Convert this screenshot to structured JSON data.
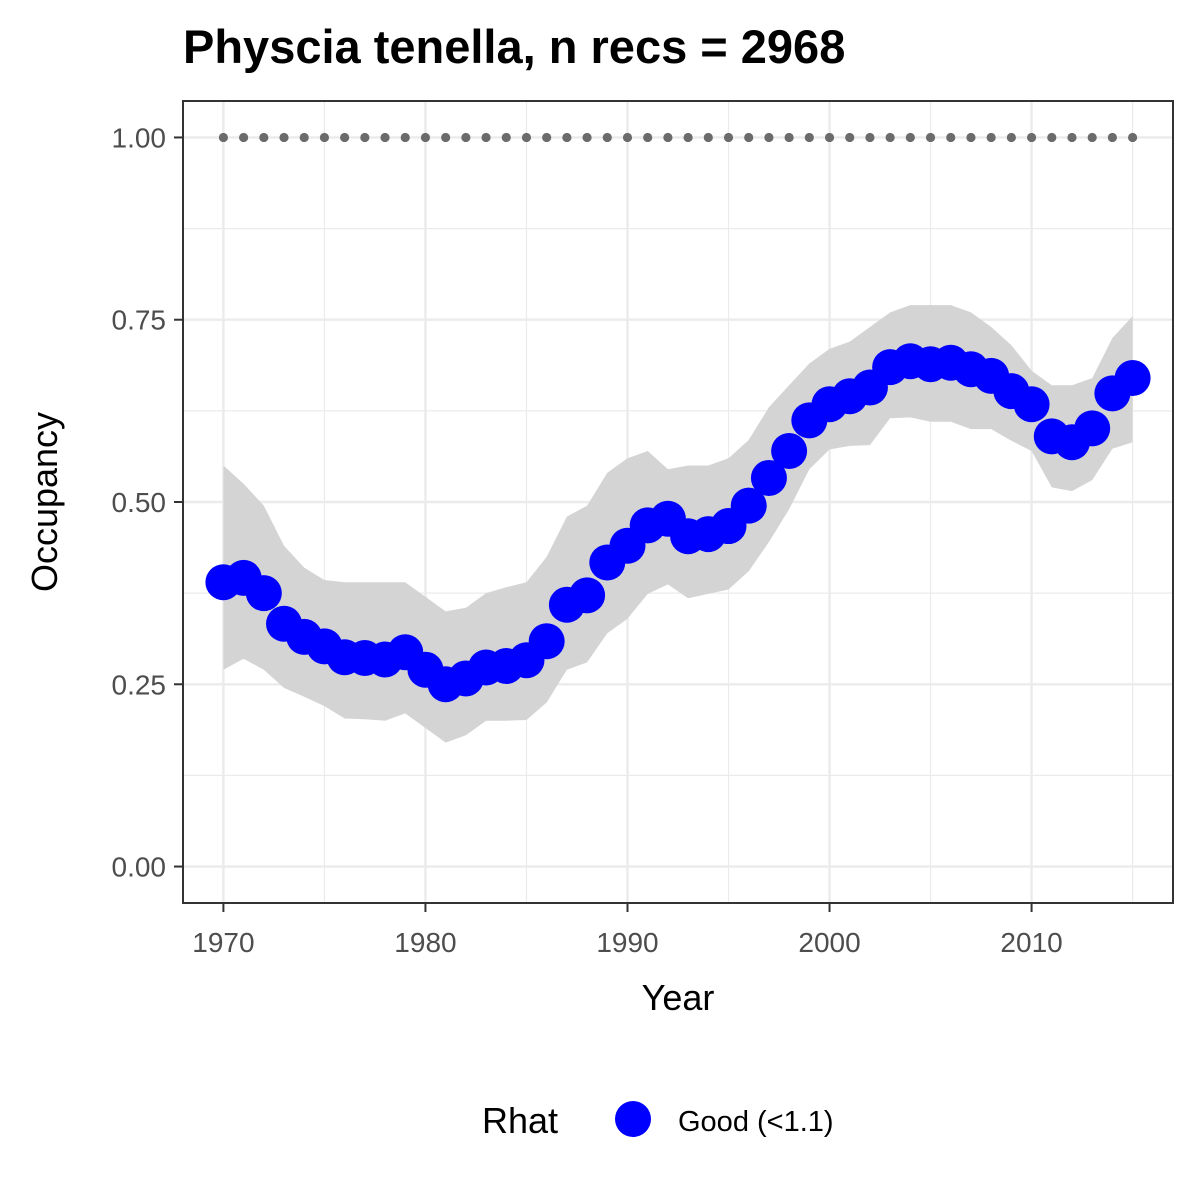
{
  "chart_data": {
    "type": "line",
    "title": "Physcia tenella, n recs = 2968",
    "xlabel": "Year",
    "ylabel": "Occupancy",
    "xlim": [
      1968,
      2017
    ],
    "ylim": [
      -0.05,
      1.05
    ],
    "x_ticks": [
      1970,
      1980,
      1990,
      2000,
      2010
    ],
    "x_tick_labels": [
      "1970",
      "1980",
      "1990",
      "2000",
      "2010"
    ],
    "y_ticks": [
      0,
      0.25,
      0.5,
      0.75,
      1
    ],
    "y_tick_labels": [
      "0.00",
      "0.25",
      "0.50",
      "0.75",
      "1.00"
    ],
    "grid": true,
    "legend": {
      "title": "Rhat",
      "position": "bottom",
      "entries": [
        {
          "label": "Good (<1.1)",
          "color": "#0000ff"
        }
      ]
    },
    "colors": {
      "points": "#0000ff",
      "ribbon": "#d4d4d4",
      "reference_line": "#6b6b6b",
      "panel_border": "#333333",
      "grid": "#ebebeb"
    },
    "reference_line": {
      "y": 1.0,
      "style": "dotted"
    },
    "x": [
      1970,
      1971,
      1972,
      1973,
      1974,
      1975,
      1976,
      1977,
      1978,
      1979,
      1980,
      1981,
      1982,
      1983,
      1984,
      1985,
      1986,
      1987,
      1988,
      1989,
      1990,
      1991,
      1992,
      1993,
      1994,
      1995,
      1996,
      1997,
      1998,
      1999,
      2000,
      2001,
      2002,
      2003,
      2004,
      2005,
      2006,
      2007,
      2008,
      2009,
      2010,
      2011,
      2012,
      2013,
      2014,
      2015
    ],
    "series": [
      {
        "name": "Good (<1.1)",
        "values": [
          0.39,
          0.396,
          0.375,
          0.333,
          0.315,
          0.302,
          0.287,
          0.286,
          0.284,
          0.294,
          0.27,
          0.25,
          0.258,
          0.273,
          0.275,
          0.283,
          0.309,
          0.359,
          0.372,
          0.417,
          0.44,
          0.468,
          0.477,
          0.453,
          0.456,
          0.467,
          0.495,
          0.533,
          0.57,
          0.612,
          0.634,
          0.645,
          0.657,
          0.685,
          0.693,
          0.689,
          0.691,
          0.682,
          0.673,
          0.652,
          0.634,
          0.59,
          0.582,
          0.601,
          0.649,
          0.67
        ],
        "lower": [
          0.27,
          0.285,
          0.27,
          0.245,
          0.233,
          0.22,
          0.203,
          0.202,
          0.2,
          0.21,
          0.19,
          0.17,
          0.18,
          0.2,
          0.2,
          0.201,
          0.225,
          0.27,
          0.28,
          0.32,
          0.34,
          0.374,
          0.387,
          0.368,
          0.374,
          0.38,
          0.405,
          0.445,
          0.49,
          0.545,
          0.572,
          0.577,
          0.578,
          0.615,
          0.616,
          0.61,
          0.61,
          0.6,
          0.6,
          0.584,
          0.57,
          0.52,
          0.515,
          0.53,
          0.573,
          0.582
        ],
        "upper": [
          0.55,
          0.525,
          0.495,
          0.44,
          0.41,
          0.393,
          0.39,
          0.39,
          0.39,
          0.39,
          0.37,
          0.35,
          0.355,
          0.375,
          0.383,
          0.39,
          0.425,
          0.48,
          0.495,
          0.54,
          0.56,
          0.57,
          0.545,
          0.55,
          0.55,
          0.56,
          0.585,
          0.63,
          0.66,
          0.69,
          0.71,
          0.72,
          0.74,
          0.76,
          0.77,
          0.77,
          0.77,
          0.76,
          0.74,
          0.715,
          0.68,
          0.66,
          0.66,
          0.67,
          0.725,
          0.755
        ]
      },
      {
        "name": "",
        "style": "dotted",
        "values": [
          1,
          1,
          1,
          1,
          1,
          1,
          1,
          1,
          1,
          1,
          1,
          1,
          1,
          1,
          1,
          1,
          1,
          1,
          1,
          1,
          1,
          1,
          1,
          1,
          1,
          1,
          1,
          1,
          1,
          1,
          1,
          1,
          1,
          1,
          1,
          1,
          1,
          1,
          1,
          1,
          1,
          1,
          1,
          1,
          1,
          1
        ]
      }
    ]
  }
}
